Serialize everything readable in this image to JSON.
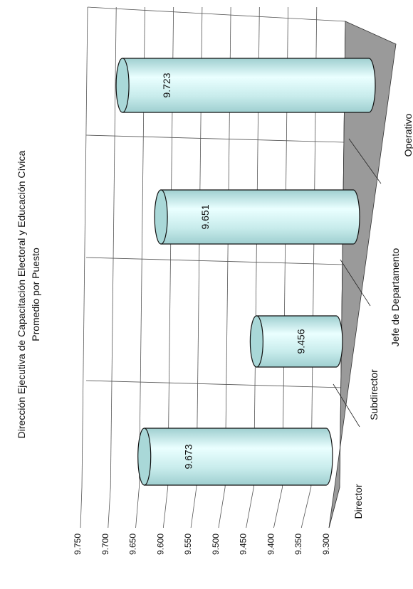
{
  "chart_data": {
    "type": "bar",
    "style": "3d-cylinder",
    "orientation": "rotated-90-ccw",
    "title": "Dirección Ejecutiva de Capacitación Electoral y Educación Cívica",
    "subtitle": "Promedio por Puesto",
    "categories": [
      "Director",
      "Subdirector",
      "Jefe de Departamento",
      "Operativo"
    ],
    "values": [
      9.673,
      9.456,
      9.651,
      9.723
    ],
    "value_labels": [
      "9.673",
      "9.456",
      "9.651",
      "9.723"
    ],
    "ylim": [
      9.3,
      9.75
    ],
    "y_ticks": [
      "9.300",
      "9.350",
      "9.400",
      "9.450",
      "9.500",
      "9.550",
      "9.600",
      "9.650",
      "9.700",
      "9.750"
    ],
    "grid": true,
    "legend": "none",
    "colors": {
      "cylinder_light": "#eaffff",
      "cylinder_mid": "#c8ecec",
      "cylinder_dark": "#9fcfd0",
      "floor": "#9a9a9a",
      "grid": "#555555"
    }
  }
}
